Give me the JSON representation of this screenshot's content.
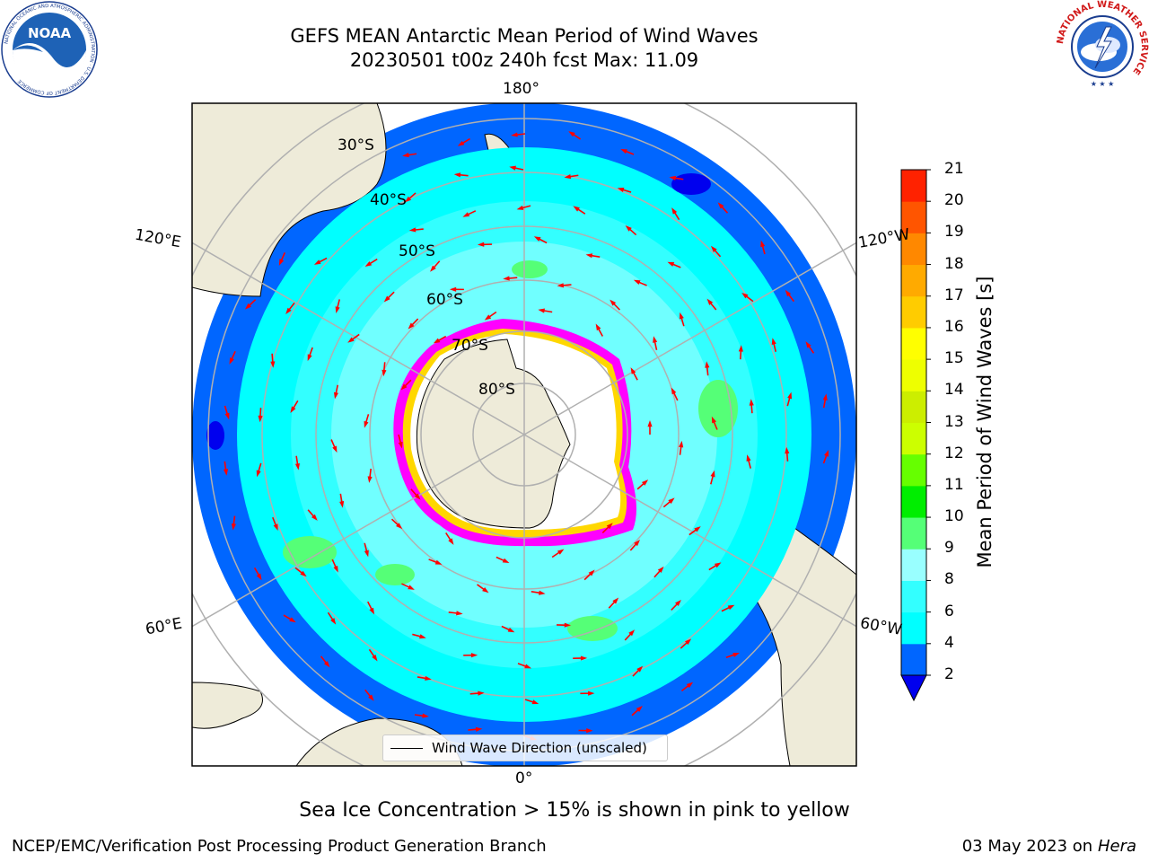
{
  "header": {
    "title_line1": "GEFS MEAN Antarctic Mean Period of Wind Waves",
    "title_line2": "20230501 t00z 240h fcst   Max: 11.09"
  },
  "logos": {
    "left_icon": "noaa-logo-icon",
    "left_text": "NOAA",
    "left_ring_text": "NATIONAL OCEANIC AND ATMOSPHERIC ADMINISTRATION · U.S. DEPARTMENT OF COMMERCE",
    "right_icon": "national-weather-service-logo-icon",
    "right_ring_text": "NATIONAL WEATHER SERVICE"
  },
  "map": {
    "longitude_labels": {
      "top": "180°",
      "bottom": "0°",
      "upper_left": "120°E",
      "lower_left": "60°E",
      "upper_right": "120°W",
      "lower_right": "60°W"
    },
    "latitude_labels": [
      "30°S",
      "40°S",
      "50°S",
      "60°S",
      "70°S",
      "80°S"
    ],
    "legend_label": "Wind Wave Direction (unscaled)",
    "arrow_color": "#ff0000",
    "land_color": "#eeebd9",
    "ice_colors": [
      "#ff00ff",
      "#ff66cc",
      "#ffd700",
      "#ffff66"
    ]
  },
  "colorbar": {
    "label": "Mean Period of Wind Waves [s]",
    "ticks": [
      "2",
      "4",
      "6",
      "8",
      "9",
      "10",
      "11",
      "12",
      "13",
      "14",
      "15",
      "16",
      "17",
      "18",
      "19",
      "20",
      "21"
    ],
    "colors": [
      "#0066ff",
      "#00ffff",
      "#33ffff",
      "#99ffff",
      "#55ff77",
      "#00ee00",
      "#66ff00",
      "#ccff00",
      "#ccee00",
      "#eeff00",
      "#ffff00",
      "#ffcc00",
      "#ffaa00",
      "#ff8800",
      "#ff5500",
      "#ff2200"
    ],
    "under_color": "#0000ee"
  },
  "footer": {
    "ice_note": "Sea Ice Concentration > 15% is shown in pink to yellow",
    "credit": "NCEP/EMC/Verification Post Processing Product Generation Branch",
    "date": "03 May 2023 on",
    "machine": "Hera"
  }
}
